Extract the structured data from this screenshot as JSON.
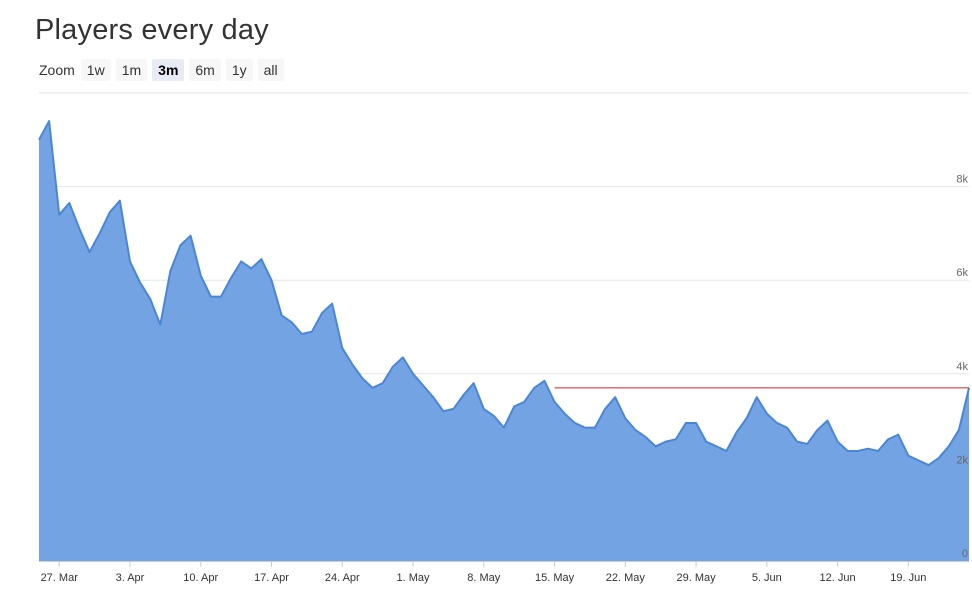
{
  "title": "Players every day",
  "zoom": {
    "label": "Zoom",
    "buttons": [
      {
        "label": "1w",
        "active": false
      },
      {
        "label": "1m",
        "active": false
      },
      {
        "label": "3m",
        "active": true
      },
      {
        "label": "6m",
        "active": false
      },
      {
        "label": "1y",
        "active": false
      },
      {
        "label": "all",
        "active": false
      }
    ]
  },
  "colors": {
    "area_fill": "#74a3e3",
    "area_line": "#4a86d8",
    "reference_line": "#d22020",
    "grid": "#e6e6e6",
    "axis_text": "#666666"
  },
  "chart_data": {
    "type": "area",
    "title": "Players every day",
    "x_start": "2023-03-25",
    "values": [
      9000,
      9400,
      7400,
      7650,
      7100,
      6600,
      7000,
      7450,
      7700,
      6400,
      5950,
      5600,
      5050,
      6200,
      6750,
      6950,
      6100,
      5650,
      5650,
      6050,
      6400,
      6250,
      6450,
      6000,
      5250,
      5100,
      4850,
      4900,
      5300,
      5500,
      4550,
      4200,
      3900,
      3700,
      3800,
      4150,
      4350,
      4000,
      3750,
      3500,
      3200,
      3250,
      3550,
      3800,
      3250,
      3100,
      2850,
      3300,
      3400,
      3700,
      3850,
      3400,
      3150,
      2950,
      2850,
      2850,
      3250,
      3500,
      3050,
      2800,
      2650,
      2450,
      2550,
      2600,
      2950,
      2950,
      2550,
      2450,
      2350,
      2750,
      3050,
      3500,
      3150,
      2950,
      2850,
      2550,
      2500,
      2800,
      3000,
      2550,
      2350,
      2350,
      2400,
      2350,
      2600,
      2700,
      2250,
      2150,
      2050,
      2200,
      2450,
      2800,
      3700
    ],
    "reference_line": {
      "value": 3700,
      "from_index": 51
    },
    "ylim": [
      0,
      10000
    ],
    "y_ticks": [
      {
        "value": 0,
        "label": "0"
      },
      {
        "value": 2000,
        "label": "2k"
      },
      {
        "value": 4000,
        "label": "4k"
      },
      {
        "value": 6000,
        "label": "6k"
      },
      {
        "value": 8000,
        "label": "8k"
      }
    ],
    "x_ticks": [
      {
        "index": 2,
        "label": "27. Mar"
      },
      {
        "index": 9,
        "label": "3. Apr"
      },
      {
        "index": 16,
        "label": "10. Apr"
      },
      {
        "index": 23,
        "label": "17. Apr"
      },
      {
        "index": 30,
        "label": "24. Apr"
      },
      {
        "index": 37,
        "label": "1. May"
      },
      {
        "index": 44,
        "label": "8. May"
      },
      {
        "index": 51,
        "label": "15. May"
      },
      {
        "index": 58,
        "label": "22. May"
      },
      {
        "index": 65,
        "label": "29. May"
      },
      {
        "index": 72,
        "label": "5. Jun"
      },
      {
        "index": 79,
        "label": "12. Jun"
      },
      {
        "index": 86,
        "label": "19. Jun"
      }
    ],
    "grid": true,
    "legend": "none"
  }
}
